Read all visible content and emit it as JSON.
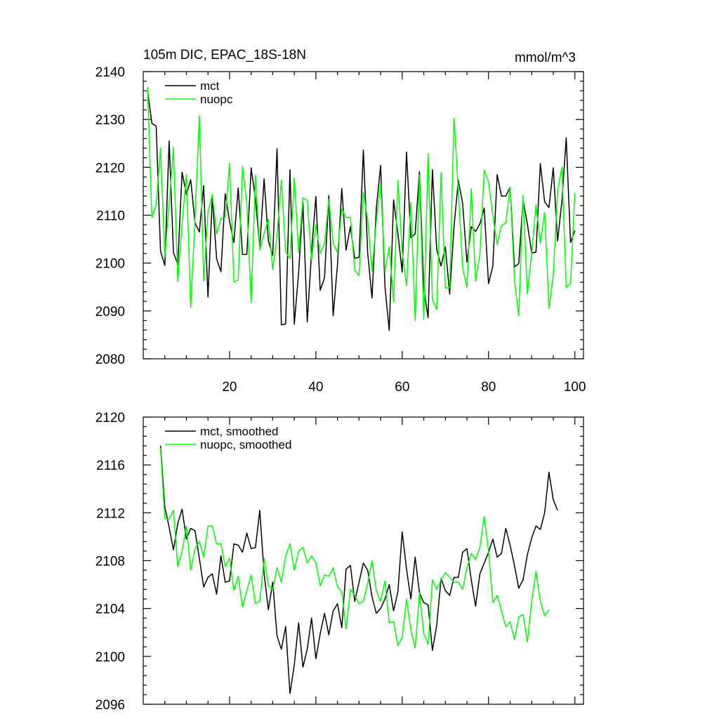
{
  "figure": {
    "title_left": "105m DIC, EPAC_18S-18N",
    "title_right": "mmol/m^3"
  },
  "chart_data": [
    {
      "type": "line",
      "title": "105m DIC, EPAC_18S-18N",
      "units": "mmol/m^3",
      "xlim": [
        0,
        102
      ],
      "ylim": [
        2080,
        2140
      ],
      "xticks": [
        20,
        40,
        60,
        80,
        100
      ],
      "yticks": [
        2080,
        2090,
        2100,
        2110,
        2120,
        2130,
        2140
      ],
      "legend_position": "top-left",
      "series": [
        {
          "name": "mct",
          "color": "#000000",
          "x_start": 1,
          "values": [
            2136.0,
            2129.2,
            2128.6,
            2102.5,
            2099.5,
            2125.5,
            2102.2,
            2099.7,
            2119.0,
            2114.3,
            2117.4,
            2108.4,
            2106.5,
            2116.2,
            2092.9,
            2113.7,
            2100.9,
            2098.2,
            2114.5,
            2108.7,
            2104.3,
            2115.7,
            2101.8,
            2101.8,
            2119.9,
            2113.4,
            2103.2,
            2117.6,
            2104.6,
            2101.6,
            2123.9,
            2087.1,
            2087.3,
            2119.5,
            2087.2,
            2098.0,
            2112.7,
            2087.7,
            2102.4,
            2113.9,
            2094.3,
            2096.9,
            2114.1,
            2089.0,
            2099.6,
            2115.6,
            2102.7,
            2107.6,
            2101.0,
            2101.2,
            2123.6,
            2102.1,
            2092.7,
            2111.5,
            2120.4,
            2095.1,
            2085.9,
            2113.2,
            2106.2,
            2098.1,
            2123.2,
            2105.3,
            2106.1,
            2119.1,
            2094.6,
            2088.6,
            2119.5,
            2102.8,
            2099.4,
            2103.4,
            2093.5,
            2107.5,
            2117.3,
            2112.5,
            2100.2,
            2107.6,
            2106.6,
            2108.2,
            2111.5,
            2095.7,
            2099.4,
            2118.5,
            2114.0,
            2114.0,
            2115.8,
            2099.2,
            2099.9,
            2113.1,
            2108.2,
            2102.1,
            2102.3,
            2120.8,
            2112.8,
            2111.6,
            2119.9,
            2104.6,
            2112.9,
            2126.2,
            2104.3,
            2106.8
          ]
        },
        {
          "name": "nuopc",
          "color": "#00ff00",
          "x_start": 1,
          "values": [
            2136.8,
            2109.5,
            2112.2,
            2124.0,
            2101.3,
            2112.4,
            2124.1,
            2096.1,
            2108.3,
            2118.5,
            2090.7,
            2109.4,
            2130.8,
            2096.3,
            2110.7,
            2114.3,
            2106.1,
            2109.3,
            2109.5,
            2120.8,
            2096.0,
            2096.5,
            2120.2,
            2112.4,
            2091.7,
            2118.4,
            2102.7,
            2106.2,
            2109.1,
            2098.6,
            2105.7,
            2117.3,
            2102.3,
            2100.9,
            2117.8,
            2102.2,
            2113.6,
            2113.1,
            2100.6,
            2108.0,
            2102.0,
            2104.1,
            2113.3,
            2104.1,
            2102.2,
            2111.3,
            2109.5,
            2109.6,
            2098.5,
            2097.4,
            2114.8,
            2109.0,
            2098.3,
            2108.7,
            2116.6,
            2098.4,
            2103.4,
            2091.9,
            2117.2,
            2102.4,
            2095.3,
            2112.7,
            2088.0,
            2118.4,
            2088.2,
            2122.9,
            2092.3,
            2090.3,
            2118.9,
            2094.8,
            2094.8,
            2130.3,
            2115.1,
            2099.0,
            2094.9,
            2115.5,
            2096.2,
            2101.8,
            2119.4,
            2117.0,
            2109.9,
            2103.9,
            2107.8,
            2108.4,
            2115.8,
            2096.5,
            2089.0,
            2114.1,
            2093.6,
            2102.0,
            2112.2,
            2104.1,
            2110.6,
            2090.5,
            2097.4,
            2114.9,
            2120.0,
            2094.9,
            2095.7,
            2114.6
          ]
        }
      ]
    },
    {
      "type": "line",
      "title": "",
      "xlim": [
        0,
        102
      ],
      "ylim": [
        2096,
        2120
      ],
      "xticks": [
        20,
        40,
        60,
        80,
        100
      ],
      "yticks": [
        2096,
        2100,
        2104,
        2108,
        2112,
        2116,
        2120
      ],
      "show_x_tick_labels": false,
      "legend_position": "top-left",
      "series": [
        {
          "name": "mct, smoothed",
          "color": "#000000",
          "x_start": 4,
          "values": [
            2117.6,
            2112.5,
            2110.8,
            2108.9,
            2111.1,
            2112.3,
            2109.8,
            2110.7,
            2110.5,
            2108.2,
            2105.8,
            2106.6,
            2106.9,
            2105.2,
            2108.4,
            2106.2,
            2106.3,
            2109.4,
            2109.3,
            2108.7,
            2110.3,
            2109.0,
            2109.1,
            2112.2,
            2106.9,
            2103.9,
            2106.2,
            2101.7,
            2100.6,
            2102.5,
            2096.9,
            2099.3,
            2102.8,
            2099.1,
            2100.6,
            2103.2,
            2099.8,
            2101.9,
            2103.6,
            2101.8,
            2103.8,
            2104.4,
            2102.4,
            2107.3,
            2107.6,
            2104.6,
            2106.2,
            2107.8,
            2107.2,
            2105.0,
            2103.6,
            2104.0,
            2104.8,
            2106.0,
            2103.8,
            2105.4,
            2110.4,
            2107.3,
            2104.8,
            2108.3,
            2105.3,
            2104.5,
            2104.3,
            2100.5,
            2102.6,
            2106.5,
            2105.5,
            2105.1,
            2106.6,
            2106.6,
            2108.7,
            2109.0,
            2106.4,
            2104.2,
            2106.9,
            2107.8,
            2108.7,
            2109.8,
            2108.3,
            2108.6,
            2110.7,
            2109.3,
            2107.6,
            2105.7,
            2106.4,
            2108.5,
            2109.9,
            2110.9,
            2110.6,
            2112.0,
            2115.4,
            2113.1,
            2112.2
          ]
        },
        {
          "name": "nuopc, smoothed",
          "color": "#00ff00",
          "x_start": 4,
          "values": [
            2117.4,
            2111.5,
            2111.5,
            2112.2,
            2107.5,
            2108.8,
            2110.9,
            2107.2,
            2109.0,
            2109.6,
            2108.3,
            2110.9,
            2110.9,
            2109.4,
            2109.4,
            2107.5,
            2108.2,
            2105.5,
            2106.7,
            2104.1,
            2105.5,
            2106.8,
            2104.4,
            2104.6,
            2108.2,
            2105.9,
            2105.6,
            2107.4,
            2106.2,
            2108.4,
            2109.4,
            2107.2,
            2108.8,
            2109.1,
            2107.8,
            2108.4,
            2107.8,
            2105.9,
            2106.8,
            2106.7,
            2107.4,
            2105.8,
            2105.4,
            2102.3,
            2105.6,
            2105.1,
            2104.4,
            2104.6,
            2106.1,
            2108.0,
            2105.5,
            2104.6,
            2106.3,
            2102.8,
            2102.9,
            2100.9,
            2101.6,
            2104.8,
            2102.2,
            2100.7,
            2105.3,
            2101.9,
            2101.0,
            2106.4,
            2105.6,
            2106.4,
            2107.0,
            2106.6,
            2106.2,
            2106.2,
            2105.6,
            2107.4,
            2108.6,
            2108.1,
            2109.1,
            2111.7,
            2108.8,
            2104.5,
            2105.1,
            2103.8,
            2102.5,
            2102.9,
            2101.4,
            2103.3,
            2103.5,
            2101.2,
            2104.6,
            2107.1,
            2104.6,
            2103.4,
            2103.9
          ]
        }
      ]
    }
  ]
}
